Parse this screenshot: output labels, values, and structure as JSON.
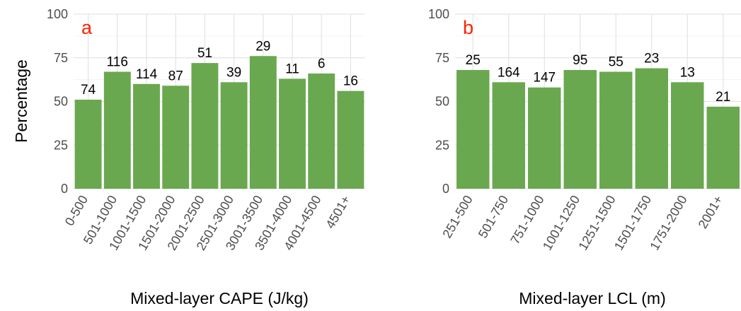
{
  "colors": {
    "bar": "#6aa84f",
    "panel_tag": "#ff2200"
  },
  "ylabel": "Percentage",
  "chart_data": [
    {
      "type": "bar",
      "panel": "a",
      "xlabel": "Mixed-layer CAPE (J/kg)",
      "ylabel": "Percentage",
      "ylim": [
        0,
        100
      ],
      "yticks": [
        "0",
        "25",
        "50",
        "75",
        "100"
      ],
      "grid": true,
      "categories": [
        "0-500",
        "501-1000",
        "1001-1500",
        "1501-2000",
        "2001-2500",
        "2501-3000",
        "3001-3500",
        "3501-4000",
        "4001-4500",
        "4501+"
      ],
      "values": [
        51,
        67,
        60,
        59,
        72,
        61,
        76,
        63,
        66,
        56
      ],
      "bar_labels": [
        "74",
        "116",
        "114",
        "87",
        "51",
        "39",
        "29",
        "11",
        "6",
        "16"
      ]
    },
    {
      "type": "bar",
      "panel": "b",
      "xlabel": "Mixed-layer LCL (m)",
      "ylim": [
        0,
        100
      ],
      "yticks": [
        "0",
        "25",
        "50",
        "75",
        "100"
      ],
      "grid": true,
      "categories": [
        "251-500",
        "501-750",
        "751-1000",
        "1001-1250",
        "1251-1500",
        "1501-1750",
        "1751-2000",
        "2001+"
      ],
      "values": [
        68,
        61,
        58,
        68,
        67,
        69,
        61,
        47
      ],
      "bar_labels": [
        "25",
        "164",
        "147",
        "95",
        "55",
        "23",
        "13",
        "21"
      ]
    }
  ]
}
